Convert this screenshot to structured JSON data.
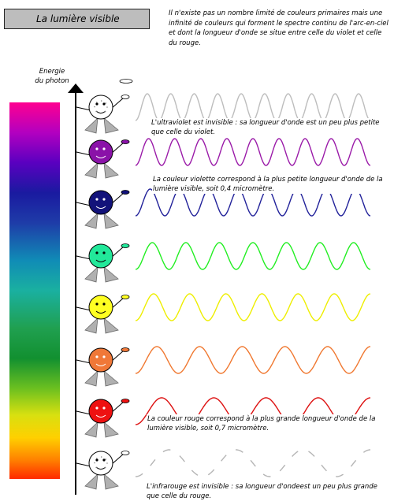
{
  "title": "La lumière visible",
  "intro_text": "Il n'existe pas un nombre limité de couleurs primaires mais une infinité de couleurs qui forment le spectre continu de l'arc-en-ciel et dont la longueur d'onde se situe entre celle du violet et celle du rouge.",
  "axis_label": {
    "line1": "Energie",
    "line2": "du photon"
  },
  "notes": {
    "ultraviolet": "L'ultraviolet est invisible : sa longueur d'onde est un peu plus petite que celle du violet.",
    "violet": "La couleur violette correspond à la plus petite longueur d'onde de la lumière visible, soit 0,4 micromètre.",
    "red": "La couleur rouge correspond à la plus grande longueur d'onde de la lumière visible, soit 0,7 micromètre.",
    "infrared": "L'infrarouge est invisible : sa longueur d'ondeest un peu plus grande que celle du rouge."
  },
  "photons": [
    {
      "name": "ultraviolet",
      "color": "#ffffff",
      "wave_color": "#bdbdbd",
      "cycles": 10,
      "wave_style": "solid"
    },
    {
      "name": "violet",
      "color": "#8a12a8",
      "wave_color": "#9a1aa8",
      "cycles": 9,
      "wave_style": "solid"
    },
    {
      "name": "blue",
      "color": "#12127a",
      "wave_color": "#22229a",
      "cycles": 8,
      "wave_style": "solid"
    },
    {
      "name": "green",
      "color": "#22e89a",
      "wave_color": "#22ee22",
      "cycles": 7,
      "wave_style": "solid"
    },
    {
      "name": "yellow",
      "color": "#ffff22",
      "wave_color": "#eeee00",
      "cycles": 6.5,
      "wave_style": "solid"
    },
    {
      "name": "orange",
      "color": "#f07838",
      "wave_color": "#f07830",
      "cycles": 5.5,
      "wave_style": "solid"
    },
    {
      "name": "red",
      "color": "#ee1111",
      "wave_color": "#dd1111",
      "cycles": 4.5,
      "wave_style": "solid"
    },
    {
      "name": "infrared",
      "color": "#ffffff",
      "wave_color": "#b5b5b5",
      "cycles": 3.5,
      "wave_style": "dashed"
    }
  ]
}
